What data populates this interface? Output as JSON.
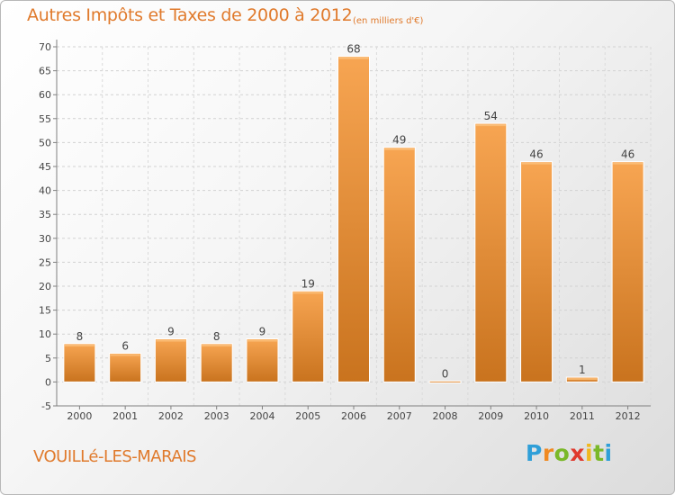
{
  "header": {
    "title": "Autres Impôts et Taxes de 2000 à 2012",
    "subtitle": "(en milliers d'€)"
  },
  "footer": {
    "commune": "VOUILLé-LES-MARAIS",
    "logo_letters": [
      "P",
      "r",
      "o",
      "x",
      "i",
      "t",
      "i"
    ],
    "logo_colors": [
      "#2f9fd8",
      "#f08a22",
      "#7ab829",
      "#e03a2e",
      "#f0b81e",
      "#7ab829",
      "#2f9fd8"
    ]
  },
  "chart_data": {
    "type": "bar",
    "title": "Autres Impôts et Taxes de 2000 à 2012",
    "subtitle": "(en milliers d'€)",
    "categories": [
      "2000",
      "2001",
      "2002",
      "2003",
      "2004",
      "2005",
      "2006",
      "2007",
      "2008",
      "2009",
      "2010",
      "2011",
      "2012"
    ],
    "values": [
      8,
      6,
      9,
      8,
      9,
      19,
      68,
      49,
      0,
      54,
      46,
      1,
      46
    ],
    "data_labels": [
      "8",
      "6",
      "9",
      "8",
      "9",
      "19",
      "68",
      "49",
      "0",
      "54",
      "46",
      "1",
      "46"
    ],
    "yticks": [
      -5,
      0,
      5,
      10,
      15,
      20,
      25,
      30,
      35,
      40,
      45,
      50,
      55,
      60,
      65,
      70
    ],
    "ylim": [
      -5,
      70
    ],
    "grid": true,
    "bar_color": "#f0922f",
    "bar_color_light": "#f7a552",
    "bar_color_dark": "#c9731e",
    "xlabel": "",
    "ylabel": ""
  }
}
